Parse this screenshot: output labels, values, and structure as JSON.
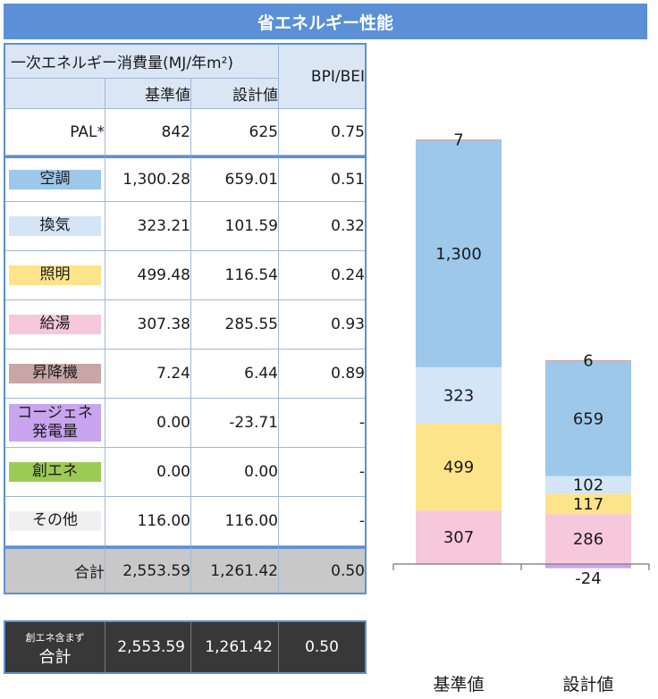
{
  "title": "省エネルギー性能",
  "table": {
    "header_main": "一次エネルギー消費量(MJ/年m²)",
    "header_ratio": "BPI/BEI",
    "col_standard": "基準値",
    "col_design": "設計値",
    "pal": {
      "label": "PAL*",
      "standard": "842",
      "design": "625",
      "ratio": "0.75"
    },
    "rows": [
      {
        "label": "空調",
        "standard": "1,300.28",
        "design": "659.01",
        "ratio": "0.51",
        "color": "#9dc8ea"
      },
      {
        "label": "換気",
        "standard": "323.21",
        "design": "101.59",
        "ratio": "0.32",
        "color": "#d3e5f6"
      },
      {
        "label": "照明",
        "standard": "499.48",
        "design": "116.54",
        "ratio": "0.24",
        "color": "#fde38a"
      },
      {
        "label": "給湯",
        "standard": "307.38",
        "design": "285.55",
        "ratio": "0.93",
        "color": "#f7c8dc"
      },
      {
        "label": "昇降機",
        "standard": "7.24",
        "design": "6.44",
        "ratio": "0.89",
        "color": "#c9a6a6"
      },
      {
        "label": "コージェネ 発電量",
        "label1": "コージェネ",
        "label2": "発電量",
        "standard": "0.00",
        "design": "-23.71",
        "ratio": "-",
        "color": "#c8a5ee"
      },
      {
        "label": "創エネ",
        "standard": "0.00",
        "design": "0.00",
        "ratio": "-",
        "color": "#9ccb55"
      },
      {
        "label": "その他",
        "standard": "116.00",
        "design": "116.00",
        "ratio": "-",
        "color": "#f0f0f0"
      }
    ],
    "total": {
      "label": "合計",
      "standard": "2,553.59",
      "design": "1,261.42",
      "ratio": "0.50"
    },
    "excl_total": {
      "label_small": "創エネ含まず",
      "label_big": "合計",
      "standard": "2,553.59",
      "design": "1,261.42",
      "ratio": "0.50"
    }
  },
  "chart_data": {
    "type": "bar",
    "stacked": true,
    "categories": [
      "基準値",
      "設計値"
    ],
    "series": [
      {
        "name": "給湯",
        "values": [
          307,
          286
        ],
        "labels": [
          "307",
          "286"
        ],
        "color": "#f7c8dc"
      },
      {
        "name": "照明",
        "values": [
          499,
          117
        ],
        "labels": [
          "499",
          "117"
        ],
        "color": "#fde38a"
      },
      {
        "name": "換気",
        "values": [
          323,
          102
        ],
        "labels": [
          "323",
          "102"
        ],
        "color": "#d3e5f6"
      },
      {
        "name": "空調",
        "values": [
          1300,
          659
        ],
        "labels": [
          "1,300",
          "659"
        ],
        "color": "#9dc8ea"
      },
      {
        "name": "昇降機",
        "values": [
          7,
          6
        ],
        "labels": [
          "7",
          "6"
        ],
        "color": "#c9a6a6"
      },
      {
        "name": "コージェネ発電量",
        "values": [
          0,
          -24
        ],
        "labels": [
          "",
          "-24"
        ],
        "color": "#c8a5ee"
      }
    ],
    "ylim": [
      -24,
      2436
    ],
    "grid": false,
    "legend": "none"
  }
}
